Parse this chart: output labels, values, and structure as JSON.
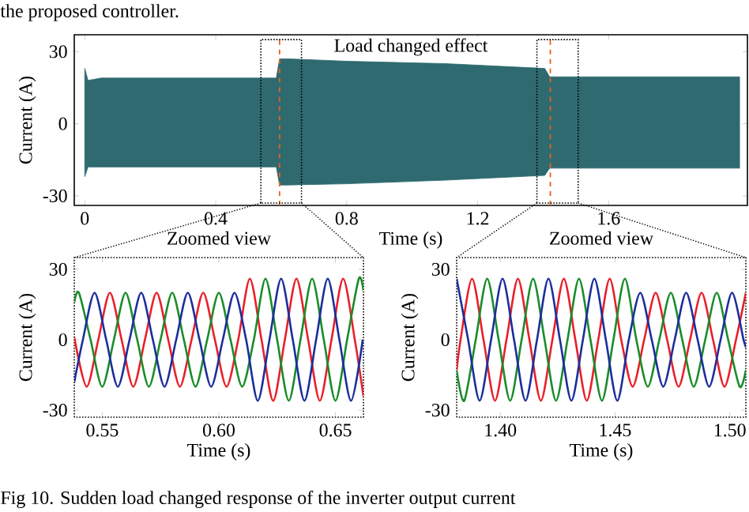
{
  "chart_data": [
    {
      "type": "area",
      "xlabel": "Time (s)",
      "ylabel": "Current (A)",
      "xlim": [
        -0.032,
        2.024
      ],
      "ylim": [
        -34,
        37
      ],
      "xticks": [
        0,
        0.4,
        0.8,
        1.2,
        1.6
      ],
      "yticks": [
        -30,
        0,
        30
      ],
      "series": [
        {
          "color": "#2e6a70",
          "x": [
            0,
            0.01,
            0.05,
            0.3,
            0.585,
            0.595,
            0.62,
            0.8,
            1.1,
            1.405,
            1.42,
            1.7,
            2.0
          ],
          "values": [
            23,
            18,
            19,
            19,
            19,
            27,
            27,
            26,
            25,
            23,
            19.5,
            19.5,
            19.5
          ]
        },
        {
          "color": "#2e6a70",
          "x": [
            0,
            0.01,
            0.05,
            0.3,
            0.585,
            0.595,
            0.62,
            0.8,
            1.1,
            1.405,
            1.42,
            1.7,
            2.0
          ],
          "values": [
            -22,
            -18,
            -18,
            -18,
            -18,
            -25.5,
            -25.5,
            -25,
            -23.5,
            -21.5,
            -18.5,
            -18.5,
            -18.5
          ]
        }
      ],
      "ref_lines": [
        {
          "axis": "x",
          "value": 0.595,
          "color": "#e8601c",
          "line_style": "dashed"
        },
        {
          "axis": "x",
          "value": 1.422,
          "color": "#e8601c",
          "line_style": "dashed"
        }
      ],
      "annotations": [
        "the proposed controller.",
        "Fig 10. Sudden load changed response of the inverter output current",
        "Load changed effect"
      ]
    },
    {
      "type": "line",
      "title": "Zoomed view",
      "xlabel": "Time (s)",
      "ylabel": "Current (A)",
      "xlim": [
        0.538,
        0.662
      ],
      "ylim": [
        -33,
        35
      ],
      "xticks": [
        0.55,
        {
          "value": 0.6,
          "label": "0.60"
        },
        0.65
      ],
      "yticks": [
        -30,
        0,
        30
      ],
      "series": [
        {
          "color": "#e8202a",
          "x": [
            0.538,
            0.5433,
            0.5483,
            0.5533,
            0.5583,
            0.5633,
            0.5683,
            0.5733,
            0.5783,
            0.5833,
            0.5883,
            0.5933,
            0.5983,
            0.6033,
            0.6083,
            0.6133,
            0.6183,
            0.6233,
            0.6283,
            0.6333,
            0.6383,
            0.6433,
            0.6483,
            0.6533,
            0.6583,
            0.662
          ],
          "values": [
            1,
            -20,
            0,
            20,
            0,
            -20,
            0,
            20,
            0,
            -20,
            0,
            20,
            0,
            -20,
            0,
            26,
            0,
            -26,
            0,
            26,
            0,
            -26,
            0,
            26,
            0,
            -24
          ]
        },
        {
          "color": "#1a8c2a",
          "x": [
            0.538,
            0.54,
            0.545,
            0.55,
            0.555,
            0.56,
            0.565,
            0.57,
            0.575,
            0.58,
            0.585,
            0.59,
            0.595,
            0.6,
            0.605,
            0.61,
            0.615,
            0.62,
            0.625,
            0.63,
            0.635,
            0.64,
            0.645,
            0.65,
            0.655,
            0.66,
            0.662
          ],
          "values": [
            16,
            20,
            0,
            -20,
            0,
            20,
            0,
            -20,
            0,
            20,
            0,
            -20,
            0,
            20,
            0,
            -20,
            0,
            26,
            0,
            -26,
            0,
            26,
            0,
            -26,
            0,
            26,
            21
          ]
        },
        {
          "color": "#1c2e9c",
          "x": [
            0.538,
            0.5417,
            0.5467,
            0.5517,
            0.5567,
            0.5617,
            0.5667,
            0.5717,
            0.5767,
            0.5817,
            0.5867,
            0.5917,
            0.5967,
            0.6017,
            0.6067,
            0.6117,
            0.6167,
            0.6217,
            0.6267,
            0.6317,
            0.6367,
            0.6417,
            0.6467,
            0.6517,
            0.6567,
            0.6617
          ],
          "values": [
            -18,
            0,
            20,
            0,
            -20,
            0,
            20,
            0,
            -20,
            0,
            20,
            0,
            -20,
            0,
            20,
            0,
            -26,
            0,
            26,
            0,
            -26,
            0,
            26,
            0,
            -26,
            0
          ]
        }
      ]
    },
    {
      "type": "line",
      "title": "Zoomed view",
      "xlabel": "Time (s)",
      "ylabel": "Current (A)",
      "xlim": [
        1.381,
        1.507
      ],
      "ylim": [
        -33,
        35
      ],
      "xticks": [
        {
          "value": 1.4,
          "label": "1.40"
        },
        1.45,
        {
          "value": 1.5,
          "label": "1.50"
        }
      ],
      "yticks": [
        -30,
        0,
        30
      ],
      "series": [
        {
          "color": "#e8202a",
          "x": [
            1.381,
            1.3827,
            1.3877,
            1.3927,
            1.3977,
            1.4027,
            1.4077,
            1.4127,
            1.4177,
            1.4227,
            1.4277,
            1.4327,
            1.4377,
            1.4427,
            1.4477,
            1.4527,
            1.4577,
            1.4627,
            1.4677,
            1.4727,
            1.4777,
            1.4827,
            1.4877,
            1.4927,
            1.4977,
            1.5027,
            1.507
          ],
          "values": [
            -13,
            0,
            26,
            0,
            -26,
            0,
            26,
            0,
            -26,
            0,
            26,
            0,
            -26,
            0,
            26,
            0,
            -20,
            0,
            20,
            0,
            -20,
            0,
            20,
            0,
            -20,
            0,
            20
          ]
        },
        {
          "color": "#1a8c2a",
          "x": [
            1.381,
            1.3843,
            1.3893,
            1.3943,
            1.3993,
            1.4043,
            1.4093,
            1.4143,
            1.4193,
            1.4243,
            1.4293,
            1.4343,
            1.4393,
            1.4443,
            1.4493,
            1.4543,
            1.4593,
            1.4643,
            1.4693,
            1.4743,
            1.4793,
            1.4843,
            1.4893,
            1.4943,
            1.4993,
            1.5043,
            1.507
          ],
          "values": [
            -13,
            -26,
            0,
            26,
            0,
            -26,
            0,
            26,
            0,
            -26,
            0,
            26,
            0,
            -26,
            0,
            26,
            0,
            -20,
            0,
            20,
            0,
            -20,
            0,
            20,
            0,
            -20,
            -13
          ]
        },
        {
          "color": "#1c2e9c",
          "x": [
            1.381,
            1.386,
            1.391,
            1.396,
            1.401,
            1.406,
            1.411,
            1.416,
            1.421,
            1.426,
            1.431,
            1.436,
            1.441,
            1.446,
            1.451,
            1.456,
            1.461,
            1.466,
            1.471,
            1.476,
            1.481,
            1.486,
            1.491,
            1.496,
            1.501,
            1.506,
            1.507
          ],
          "values": [
            26,
            0,
            -26,
            0,
            26,
            0,
            -26,
            0,
            26,
            0,
            -26,
            0,
            26,
            0,
            -26,
            0,
            20,
            0,
            -20,
            0,
            20,
            0,
            -20,
            0,
            20,
            0,
            -3
          ]
        }
      ]
    }
  ]
}
